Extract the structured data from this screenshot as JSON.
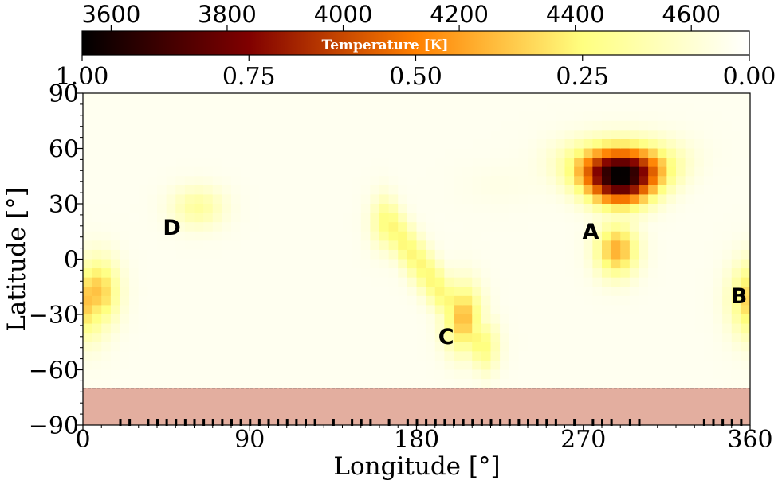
{
  "chart_data": {
    "type": "heatmap",
    "title": "",
    "xlabel": "Longitude [$^{\\circ}$]",
    "ylabel": "Latitude [$^{\\circ}$]",
    "xlabel_text": "Longitude [°]",
    "ylabel_text": "Latitude [°]",
    "xlim": [
      0,
      360
    ],
    "ylim": [
      -90,
      90
    ],
    "xticks": [
      0,
      90,
      180,
      270,
      360
    ],
    "xtick_labels": [
      "0",
      "90",
      "180",
      "270",
      "360"
    ],
    "yticks": [
      90,
      60,
      30,
      0,
      -30,
      -60,
      -90
    ],
    "ytick_labels": [
      "90",
      "60",
      "30",
      "0",
      "−30",
      "−60",
      "−90"
    ],
    "colorbar": {
      "label": "Temperature [K]",
      "orientation": "horizontal",
      "location": "top",
      "colormap": "afmhot",
      "temperature_ticks": [
        3600,
        3800,
        4000,
        4200,
        4400,
        4600
      ],
      "temperature_tick_labels": [
        "3600",
        "3800",
        "4000",
        "4200",
        "4400",
        "4600"
      ],
      "temperature_range": [
        3550,
        4700
      ],
      "contrast_ticks": [
        1.0,
        0.75,
        0.5,
        0.25,
        0.0
      ],
      "contrast_tick_labels": [
        "1.00",
        "0.75",
        "0.50",
        "0.25",
        "0.00"
      ],
      "contrast_range": [
        1.0,
        0.0
      ]
    },
    "grid": {
      "nlon": 72,
      "nlat": 36,
      "cell_deg": 5
    },
    "spots": [
      {
        "name": "A",
        "lon": 290,
        "lat": 45,
        "depth": 1.0,
        "label_lon": 274,
        "label_lat": 15
      },
      {
        "name": "B",
        "lon": 362,
        "lat": -22,
        "depth": 0.34,
        "label_lon": 354,
        "label_lat": -20
      },
      {
        "name": "C",
        "lon": 210,
        "lat": -42,
        "depth": 0.36,
        "label_lon": 196,
        "label_lat": -42
      },
      {
        "name": "D",
        "lon": 62,
        "lat": 28,
        "depth": 0.16,
        "label_lon": 48,
        "label_lat": 17
      }
    ],
    "background_contrast": 0.03,
    "hidden_region": {
      "lat_range": [
        -90,
        -70
      ],
      "color": "#E3AE9F",
      "boundary": "dashed"
    },
    "observation_ticks_deg": [
      20,
      25,
      35,
      40,
      45,
      50,
      55,
      60,
      65,
      70,
      75,
      80,
      85,
      90,
      95,
      100,
      105,
      110,
      115,
      120,
      125,
      135,
      145,
      150,
      155,
      165,
      175,
      180,
      185,
      190,
      195,
      200,
      205,
      210,
      215,
      220,
      225,
      230,
      235,
      240,
      245,
      250,
      255,
      265,
      275,
      280,
      285,
      295,
      300,
      335,
      340,
      345,
      350,
      355
    ]
  }
}
